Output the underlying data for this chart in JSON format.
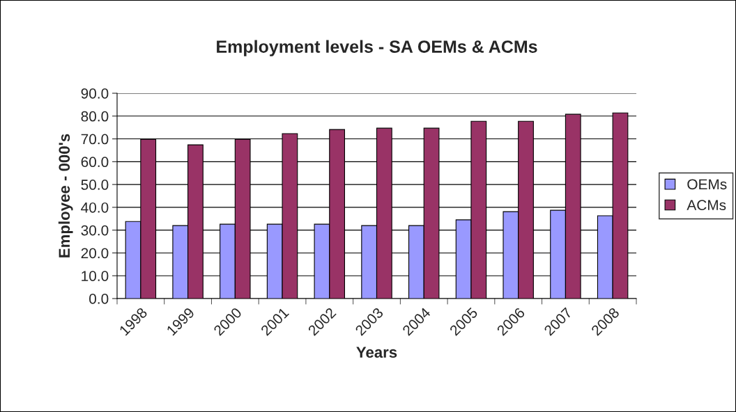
{
  "chart_data": {
    "type": "bar",
    "title": "Employment levels - SA OEMs & ACMs",
    "xlabel": "Years",
    "ylabel": "Employee - 000's",
    "categories": [
      "1998",
      "1999",
      "2000",
      "2001",
      "2002",
      "2003",
      "2004",
      "2005",
      "2006",
      "2007",
      "2008"
    ],
    "series": [
      {
        "name": "OEMs",
        "color": "#9999ff",
        "values": [
          33.8,
          32.0,
          32.6,
          32.6,
          32.6,
          32.0,
          32.0,
          34.5,
          38.1,
          38.7,
          36.3
        ]
      },
      {
        "name": "ACMs",
        "color": "#993366",
        "values": [
          69.8,
          67.4,
          69.8,
          72.3,
          74.1,
          74.7,
          74.7,
          77.7,
          77.7,
          80.8,
          81.4
        ]
      }
    ],
    "ylim": [
      0,
      90
    ],
    "yticks": [
      {
        "value": 0,
        "label": "0.0"
      },
      {
        "value": 10,
        "label": "10.0"
      },
      {
        "value": 20,
        "label": "20.0"
      },
      {
        "value": 30,
        "label": "30.0"
      },
      {
        "value": 40,
        "label": "40.0"
      },
      {
        "value": 50,
        "label": "50.0"
      },
      {
        "value": 60,
        "label": "60.0"
      },
      {
        "value": 70,
        "label": "70.0"
      },
      {
        "value": 80,
        "label": "80.0"
      },
      {
        "value": 90,
        "label": "90.0"
      }
    ],
    "grid": "y",
    "legend": "right"
  }
}
